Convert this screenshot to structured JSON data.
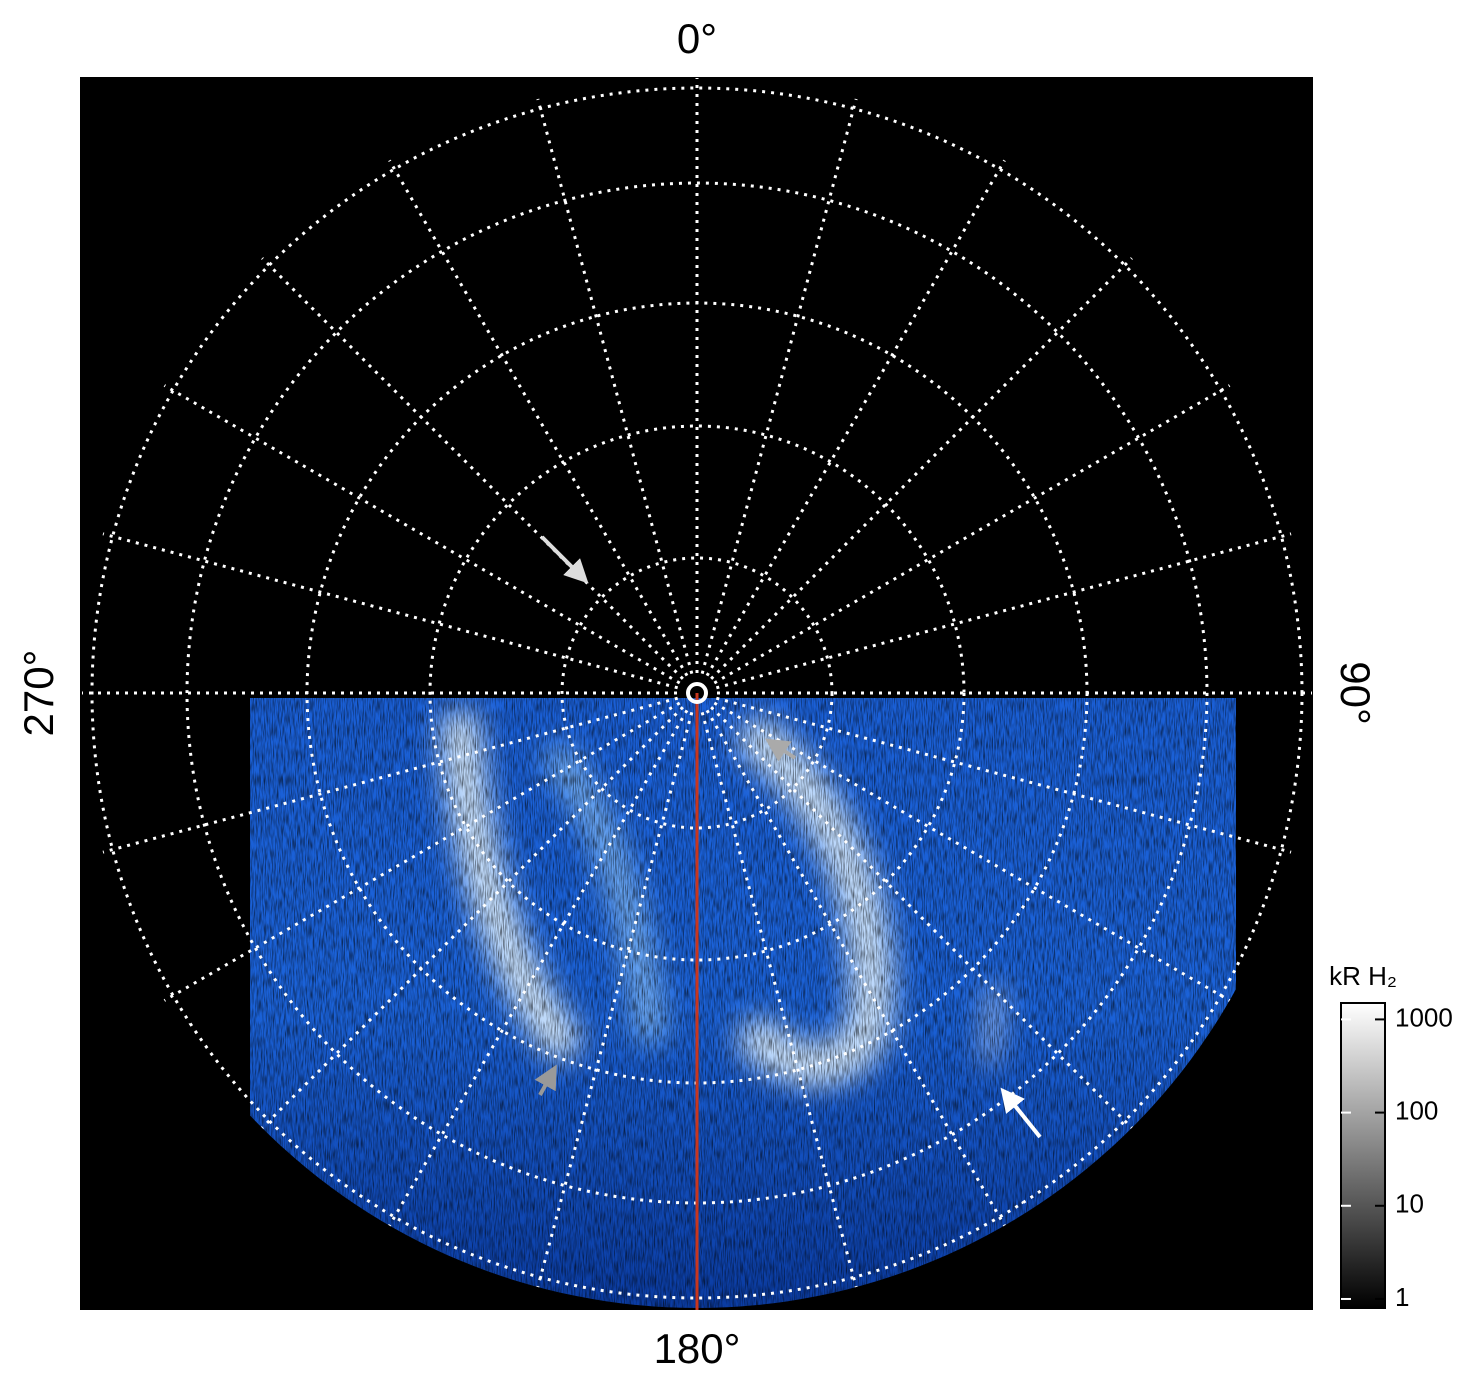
{
  "map": {
    "labels": {
      "top": "0°",
      "right": "90°",
      "bottom": "180°",
      "left": "270°"
    }
  },
  "colorbar": {
    "title": "kR H₂",
    "scale": "log",
    "lim": [
      0.8,
      1500
    ],
    "ticks": [
      1,
      10,
      100,
      1000
    ]
  }
}
